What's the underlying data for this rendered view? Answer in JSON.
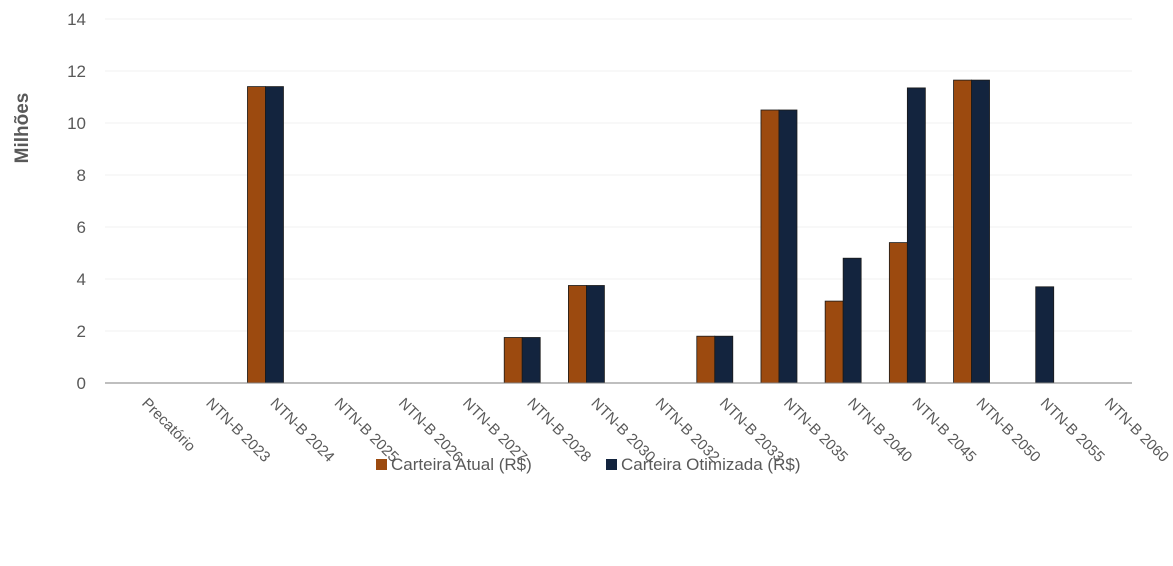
{
  "chart_data": {
    "type": "bar",
    "ylabel": "Milhões",
    "xlabel": "",
    "ylim": [
      0,
      14
    ],
    "yticks": [
      0,
      2,
      4,
      6,
      8,
      10,
      12,
      14
    ],
    "grid": true,
    "legend": "bottom",
    "categories": [
      "Precatório",
      "NTN-B 2023",
      "NTN-B 2024",
      "NTN-B 2025",
      "NTN-B 2026",
      "NTN-B 2027",
      "NTN-B 2028",
      "NTN-B 2030",
      "NTN-B 2032",
      "NTN-B 2033",
      "NTN-B 2035",
      "NTN-B 2040",
      "NTN-B 2045",
      "NTN-B 2050",
      "NTN-B 2055",
      "NTN-B 2060"
    ],
    "series": [
      {
        "name": "Carteira Atual (R$)",
        "color": "#9C4A0F",
        "values": [
          0,
          0,
          11.4,
          0,
          0,
          0,
          1.75,
          3.75,
          0,
          1.8,
          10.5,
          3.15,
          5.4,
          11.65,
          0,
          0
        ]
      },
      {
        "name": "Carteira Otimizada (R$)",
        "color": "#13243E",
        "values": [
          0,
          0,
          11.4,
          0,
          0,
          0,
          1.75,
          3.75,
          0,
          1.8,
          10.5,
          4.8,
          11.35,
          11.65,
          3.7,
          0
        ]
      }
    ]
  }
}
